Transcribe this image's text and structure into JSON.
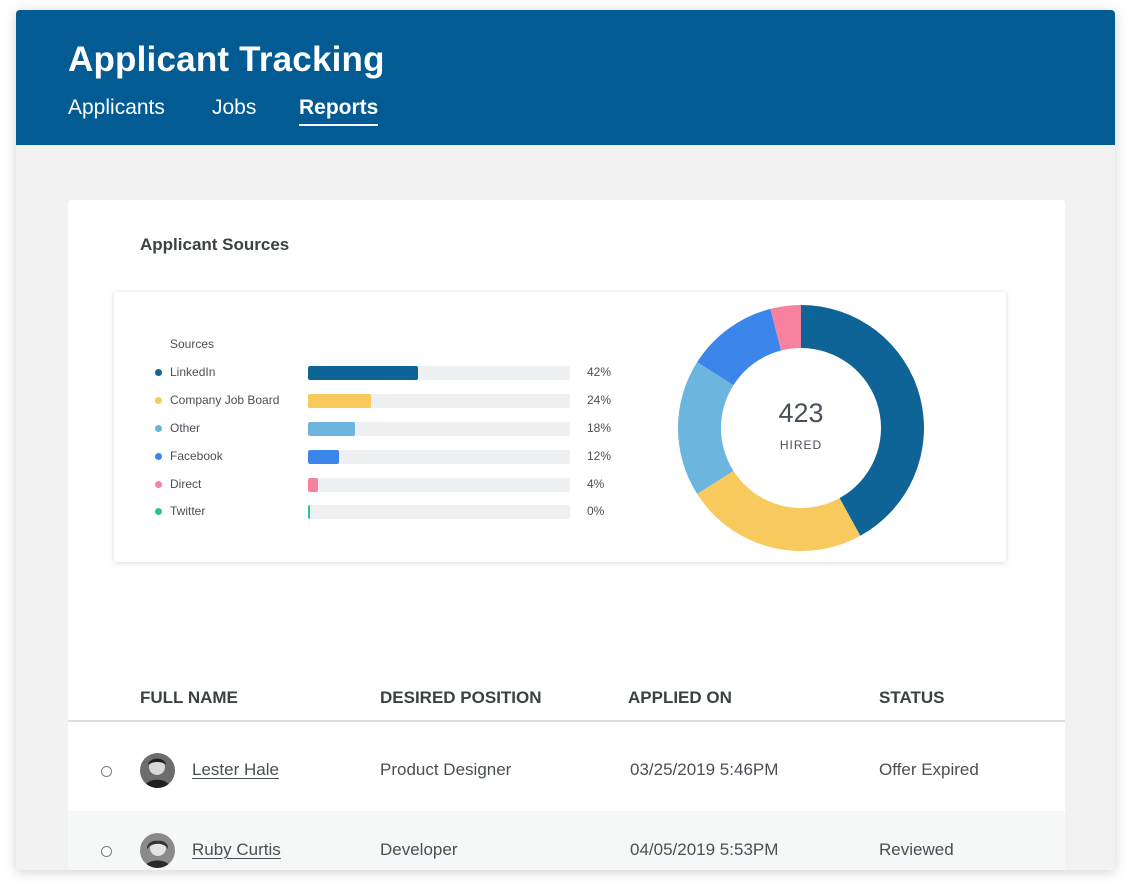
{
  "header": {
    "title": "Applicant Tracking",
    "tabs": [
      {
        "label": "Applicants",
        "active": false
      },
      {
        "label": "Jobs",
        "active": false
      },
      {
        "label": "Reports",
        "active": true
      }
    ]
  },
  "report": {
    "title": "Applicant Sources",
    "sources_heading": "Sources",
    "hired_count": "423",
    "hired_label": "HIRED"
  },
  "chart_data": {
    "type": "bar",
    "title": "Sources",
    "categories": [
      "LinkedIn",
      "Company Job Board",
      "Other",
      "Facebook",
      "Direct",
      "Twitter"
    ],
    "values": [
      42,
      24,
      18,
      12,
      4,
      0
    ],
    "labels": [
      "42%",
      "24%",
      "18%",
      "12%",
      "4%",
      "0%"
    ],
    "colors": [
      "#0e6397",
      "#f8c95c",
      "#6bb5df",
      "#3c85ea",
      "#f7819f",
      "#2bbf9f"
    ],
    "unit": "%",
    "donut": {
      "type": "pie",
      "categories": [
        "LinkedIn",
        "Company Job Board",
        "Other",
        "Facebook",
        "Direct",
        "Twitter"
      ],
      "values": [
        42,
        24,
        18,
        12,
        4,
        0
      ],
      "center_value": "423",
      "center_label": "HIRED"
    }
  },
  "table": {
    "columns": [
      "FULL NAME",
      "DESIRED POSITION",
      "APPLIED ON",
      "STATUS"
    ],
    "rows": [
      {
        "name": "Lester Hale",
        "position": "Product Designer",
        "applied": "03/25/2019  5:46PM",
        "status": "Offer Expired"
      },
      {
        "name": "Ruby Curtis",
        "position": "Developer",
        "applied": "04/05/2019  5:53PM",
        "status": "Reviewed"
      }
    ]
  },
  "colors": {
    "header_bg": "#035b93",
    "page_bg": "#f2f2f2"
  }
}
